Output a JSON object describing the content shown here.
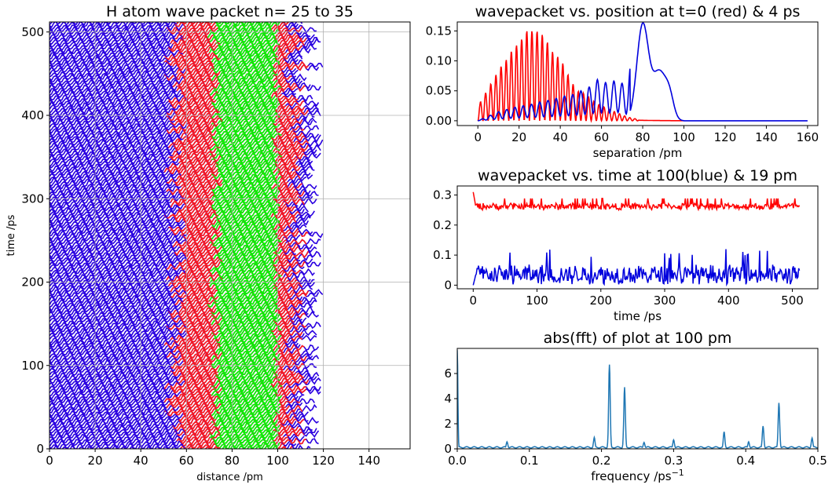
{
  "chart_data": [
    {
      "type": "line",
      "title": "H atom wave packet n= 25 to 35",
      "xlabel": "distance /pm",
      "ylabel": "time /ps",
      "xlim": [
        0,
        158
      ],
      "ylim": [
        0,
        512
      ],
      "xticks": [
        0,
        20,
        40,
        60,
        80,
        100,
        120,
        140
      ],
      "yticks": [
        0,
        100,
        200,
        300,
        400,
        500
      ],
      "grid": true,
      "colors": {
        "outer": "#2a00e0",
        "mid": "#ff1a1a",
        "core": "#00ff00"
      },
      "envelope": {
        "x_start": 0,
        "x_core_start": 72,
        "x_core_end": 100,
        "x_max": 120
      }
    },
    {
      "type": "line",
      "title": "wavepacket vs. position at t=0 (red) & 4 ps",
      "xlabel": "separation /pm",
      "ylabel": "",
      "xlim": [
        -10,
        165
      ],
      "ylim": [
        -0.008,
        0.165
      ],
      "xticks": [
        0,
        20,
        40,
        60,
        80,
        100,
        120,
        140,
        160
      ],
      "yticks": [
        0.0,
        0.05,
        0.1,
        0.15
      ],
      "ytick_labels": [
        "0.00",
        "0.05",
        "0.10",
        "0.15"
      ],
      "series": [
        {
          "color": "#ff0000",
          "peaks_x": [
            1,
            3.5,
            6,
            8.5,
            11,
            13.5,
            16,
            18.5,
            21,
            23.5,
            26,
            28.5,
            31,
            34,
            37,
            40,
            44,
            48,
            52,
            57,
            63,
            70
          ],
          "peaks_y": [
            0.03,
            0.045,
            0.06,
            0.075,
            0.09,
            0.1,
            0.115,
            0.125,
            0.135,
            0.15,
            0.15,
            0.15,
            0.145,
            0.13,
            0.11,
            0.105,
            0.075,
            0.05,
            0.045,
            0.03,
            0.02,
            0.01
          ],
          "tail_end": 100
        },
        {
          "color": "#0000dd",
          "peaks_x": [
            10,
            14,
            18,
            22,
            26,
            30,
            34,
            38,
            42,
            46,
            50,
            54,
            58,
            63,
            68,
            72,
            80,
            87
          ],
          "peaks_y": [
            0.012,
            0.015,
            0.018,
            0.02,
            0.022,
            0.025,
            0.027,
            0.03,
            0.033,
            0.035,
            0.04,
            0.045,
            0.055,
            0.05,
            0.055,
            0.045,
            0.16,
            0.08
          ],
          "tail_end": 160
        }
      ]
    },
    {
      "type": "line",
      "title": "wavepacket vs. time at 100(blue) & 19 pm",
      "xlabel": "time /ps",
      "ylabel": "",
      "xlim": [
        -25,
        540
      ],
      "ylim": [
        -0.012,
        0.33
      ],
      "xticks": [
        0,
        100,
        200,
        300,
        400,
        500
      ],
      "yticks": [
        0.0,
        0.1,
        0.2,
        0.3
      ],
      "series": [
        {
          "color": "#ff0000",
          "baseline": 0.262,
          "spread": 0.012,
          "start_value": 0.31,
          "x_max": 512
        },
        {
          "color": "#0000dd",
          "baseline": 0.035,
          "spread": 0.035,
          "start_value": 0.0,
          "x_max": 512
        }
      ]
    },
    {
      "type": "line",
      "title": "abs(fft) of plot at 100 pm",
      "xlabel": "frequency /ps",
      "xlabel_sup": "−1",
      "ylabel": "",
      "xlim": [
        0,
        0.5
      ],
      "ylim": [
        0,
        8
      ],
      "xticks": [
        0.0,
        0.1,
        0.2,
        0.3,
        0.4,
        0.5
      ],
      "xtick_labels": [
        "0.0",
        "0.1",
        "0.2",
        "0.3",
        "0.4",
        "0.5"
      ],
      "yticks": [
        0,
        2,
        4,
        6
      ],
      "series": [
        {
          "color": "#1f77b4",
          "baseline": 0.12,
          "peaks_x": [
            0.0,
            0.069,
            0.19,
            0.211,
            0.232,
            0.259,
            0.3,
            0.37,
            0.404,
            0.424,
            0.446,
            0.492
          ],
          "peaks_y": [
            7.8,
            0.5,
            0.85,
            6.65,
            4.85,
            0.45,
            0.65,
            1.3,
            0.5,
            1.75,
            3.6,
            0.8
          ]
        }
      ]
    }
  ]
}
